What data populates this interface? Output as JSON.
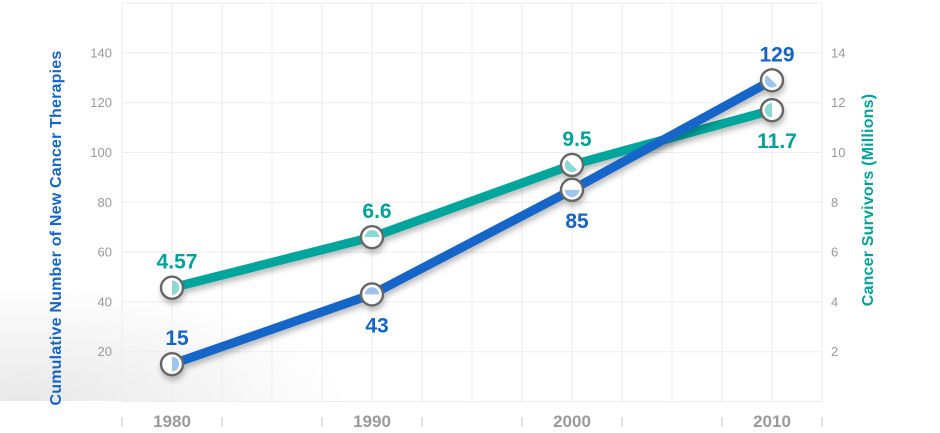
{
  "chart_data": {
    "type": "line",
    "x": [
      1980,
      1990,
      2000,
      2010
    ],
    "x_tick_labels": [
      "1980",
      "1990",
      "2000",
      "2010"
    ],
    "series": [
      {
        "name": "Cumulative Number of New Cancer Therapies",
        "axis": "left",
        "color": "#1565c9",
        "color_light": "#9cc4ef",
        "label_color": "#1565c9",
        "values": [
          15,
          43,
          85,
          129
        ],
        "value_labels": [
          "15",
          "43",
          "85",
          "129"
        ],
        "label_sides": [
          "above",
          "below",
          "below",
          "above"
        ],
        "marker_angles": [
          0,
          -90,
          90,
          135
        ]
      },
      {
        "name": "Cancer Survivors (Millions)",
        "axis": "right",
        "color": "#00a59c",
        "color_light": "#8bd9d2",
        "label_color": "#00a39b",
        "values": [
          4.57,
          6.6,
          9.5,
          11.7
        ],
        "value_labels": [
          "4.57",
          "6.6",
          "9.5",
          "11.7"
        ],
        "label_sides": [
          "above",
          "above",
          "above",
          "below"
        ],
        "marker_angles": [
          0,
          -90,
          135,
          180
        ]
      }
    ],
    "left_axis": {
      "title": "Cumulative Number of New Cancer Therapies",
      "ticks": [
        20,
        40,
        60,
        80,
        100,
        120,
        140
      ],
      "tick_labels": [
        "20",
        "40",
        "60",
        "80",
        "100",
        "120",
        "140"
      ],
      "range": [
        0,
        160
      ],
      "color": "#1565c9"
    },
    "right_axis": {
      "title": "Cancer Survivors (Millions)",
      "ticks": [
        2,
        4,
        6,
        8,
        10,
        12,
        14
      ],
      "tick_labels": [
        "2",
        "4",
        "6",
        "8",
        "10",
        "12",
        "14"
      ],
      "range": [
        0,
        16
      ],
      "color": "#00a39b"
    },
    "grid": true,
    "legend_position": "none"
  },
  "style_colors": {
    "gridline": "#ededed",
    "tick_text": "#999999",
    "year_text": "#9a9a9a",
    "marker_ring": "#666666",
    "marker_fill": "#ffffff",
    "x_tick_mark": "#c6c6c6"
  }
}
